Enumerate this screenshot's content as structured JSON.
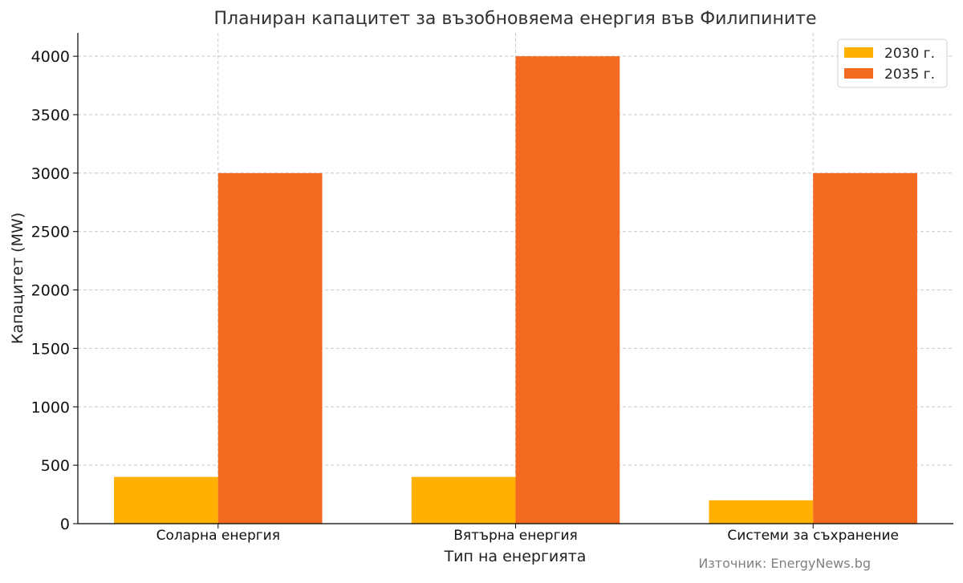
{
  "chart_data": {
    "type": "bar",
    "title": "Планиран капацитет за възобновяема енергия във Филипините",
    "xlabel": "Тип на енергията",
    "ylabel": "Капацитет (MW)",
    "categories": [
      "Соларна енергия",
      "Вятърна енергия",
      "Системи за съхранение"
    ],
    "series": [
      {
        "name": "2030 г.",
        "values": [
          400,
          400,
          200
        ],
        "color": "#FFB000"
      },
      {
        "name": "2035 г.",
        "values": [
          3000,
          4000,
          3000
        ],
        "color": "#F46A21"
      }
    ],
    "ylim": [
      0,
      4200
    ],
    "yticks": [
      0,
      500,
      1000,
      1500,
      2000,
      2500,
      3000,
      3500,
      4000
    ],
    "grid": true,
    "legend_position": "top-right",
    "source_note": "Източник: EnergyNews.bg"
  }
}
